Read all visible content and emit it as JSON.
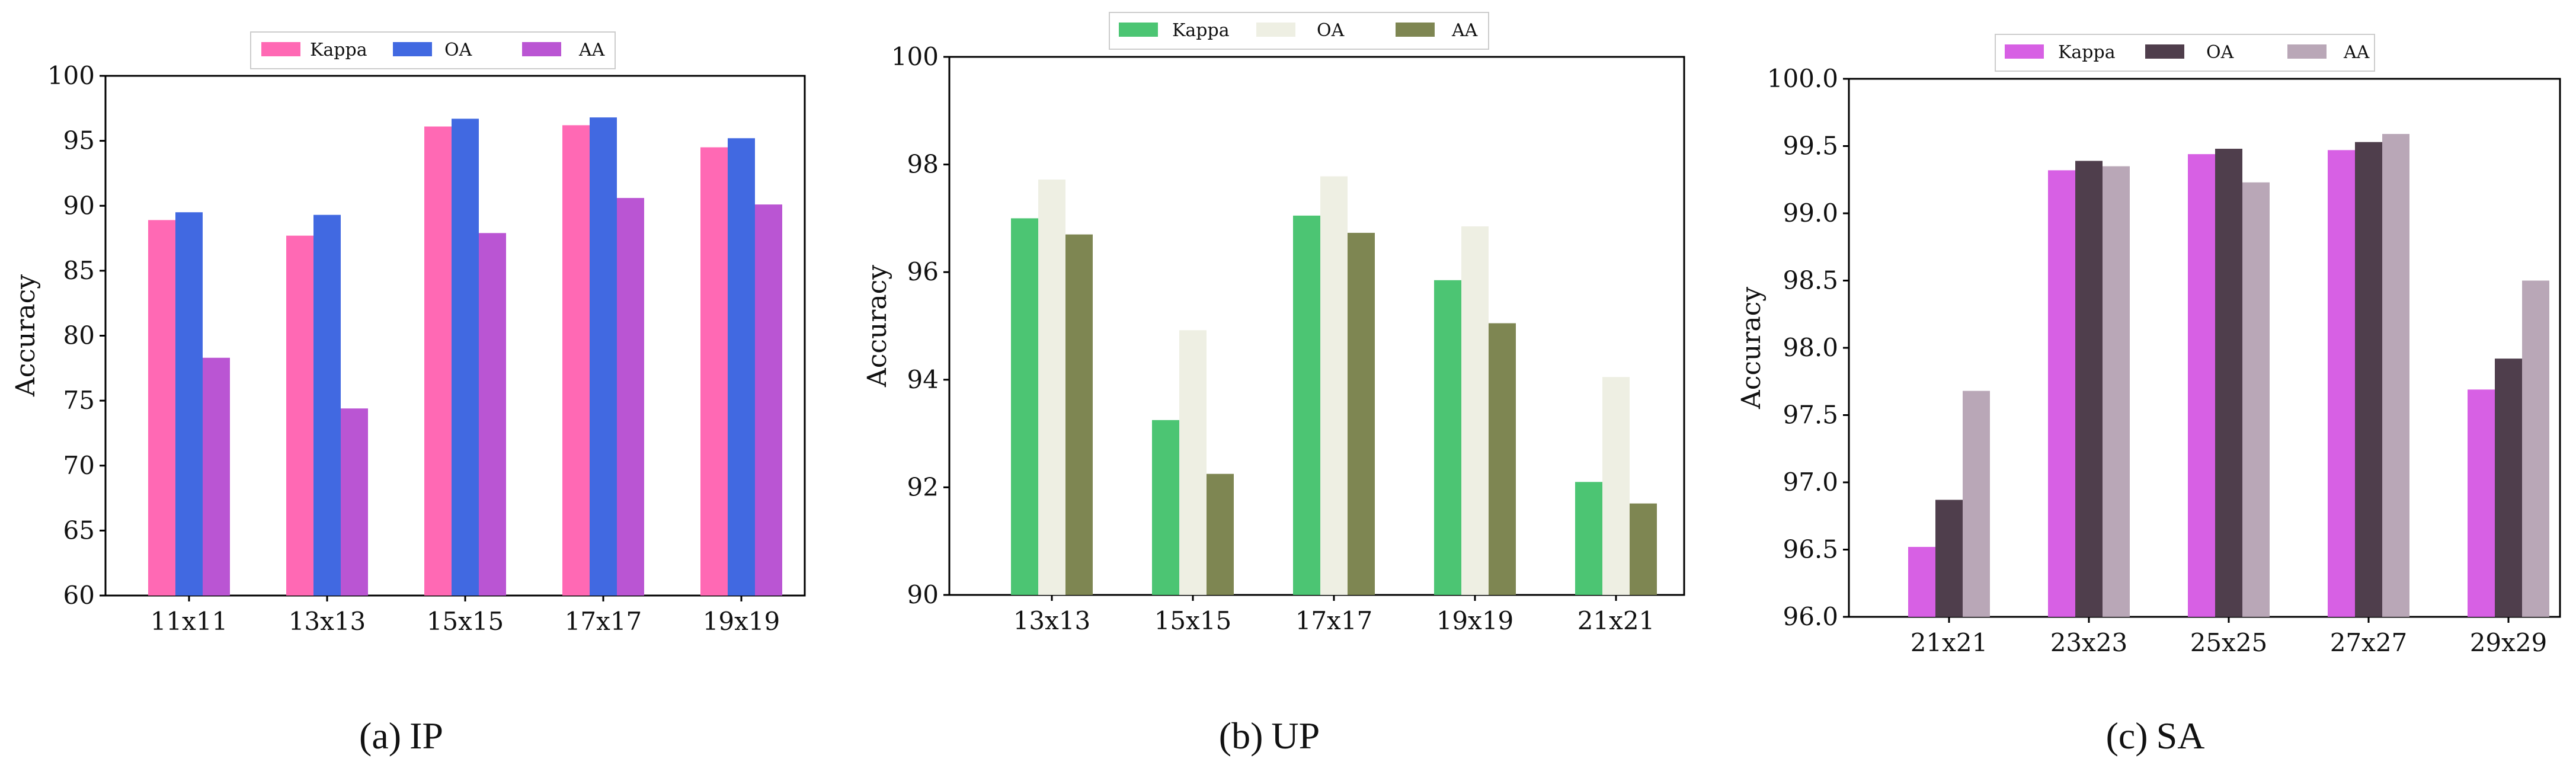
{
  "chart_data": [
    {
      "type": "bar",
      "categories": [
        "11x11",
        "13x13",
        "15x15",
        "17x17",
        "19x19"
      ],
      "series": [
        {
          "name": "Kappa",
          "values": [
            88.9,
            87.7,
            96.1,
            96.2,
            94.5
          ],
          "color": "#ff69b4"
        },
        {
          "name": "OA",
          "values": [
            89.5,
            89.3,
            96.7,
            96.8,
            95.2
          ],
          "color": "#4169e1"
        },
        {
          "name": "AA",
          "values": [
            78.3,
            74.4,
            87.9,
            90.6,
            90.1
          ],
          "color": "#ba55d3"
        }
      ],
      "ylabel": "Accuracy",
      "ylim": [
        60,
        100
      ],
      "yticks": [
        "60",
        "65",
        "70",
        "75",
        "80",
        "85",
        "90",
        "95",
        "100"
      ],
      "caption": {
        "letter": "(a)",
        "name": "IP"
      }
    },
    {
      "type": "bar",
      "categories": [
        "13x13",
        "15x15",
        "17x17",
        "19x19",
        "21x21"
      ],
      "series": [
        {
          "name": "Kappa",
          "values": [
            97.0,
            93.25,
            97.05,
            95.85,
            92.1
          ],
          "color": "#4cc573"
        },
        {
          "name": "OA",
          "values": [
            97.72,
            94.92,
            97.78,
            96.85,
            94.05
          ],
          "color": "#eeefe3"
        },
        {
          "name": "AA",
          "values": [
            96.7,
            92.25,
            96.73,
            95.05,
            91.7
          ],
          "color": "#7e8652"
        }
      ],
      "ylabel": "Accuracy",
      "ylim": [
        90,
        100
      ],
      "yticks": [
        "90",
        "92",
        "94",
        "96",
        "98",
        "100"
      ],
      "caption": {
        "letter": "(b)",
        "name": "UP"
      }
    },
    {
      "type": "bar",
      "categories": [
        "21x21",
        "23x23",
        "25x25",
        "27x27",
        "29x29"
      ],
      "series": [
        {
          "name": "Kappa",
          "values": [
            96.52,
            99.32,
            99.44,
            99.47,
            97.69
          ],
          "color": "#d760e4"
        },
        {
          "name": "OA",
          "values": [
            96.87,
            99.39,
            99.48,
            99.53,
            97.92
          ],
          "color": "#4f3e4c"
        },
        {
          "name": "AA",
          "values": [
            97.68,
            99.35,
            99.23,
            99.59,
            98.5
          ],
          "color": "#b9a7b7"
        }
      ],
      "ylabel": "Accuracy",
      "ylim": [
        96,
        100
      ],
      "yticks": [
        "96.0",
        "96.5",
        "97.0",
        "97.5",
        "98.0",
        "98.5",
        "99.0",
        "99.5",
        "100.0"
      ],
      "caption": {
        "letter": "(c)",
        "name": "SA"
      }
    }
  ]
}
